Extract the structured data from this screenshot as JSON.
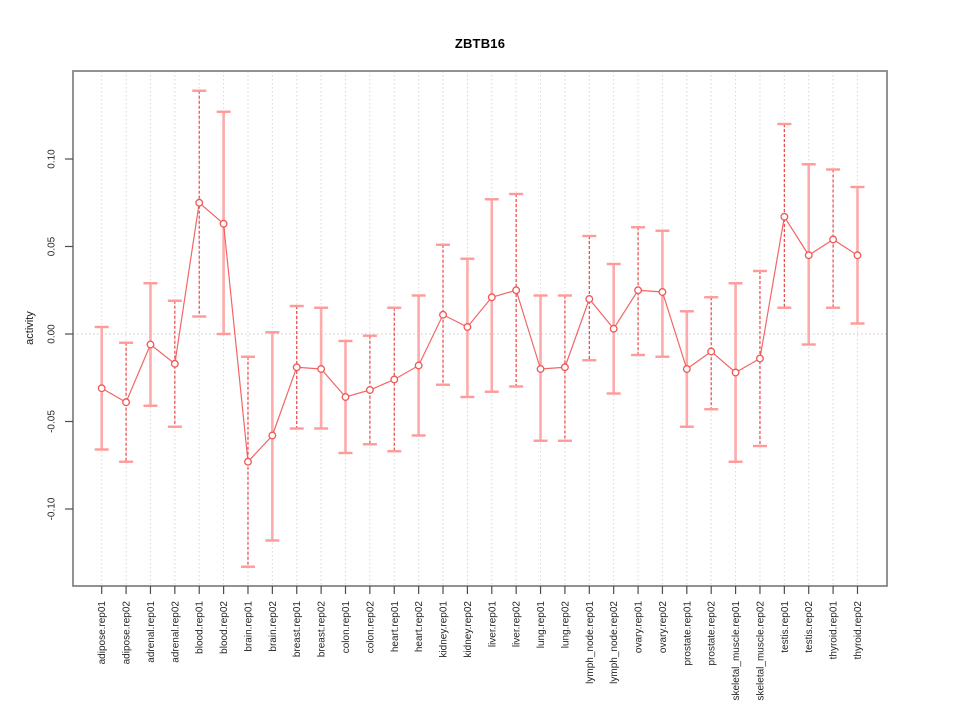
{
  "chart_data": {
    "type": "line",
    "title": "ZBTB16",
    "xlabel": "",
    "ylabel": "activity",
    "ylim": [
      -0.145,
      0.15
    ],
    "yticks": [
      0.1,
      0.05,
      0.0,
      -0.05,
      -0.1
    ],
    "ytick_labels": [
      "0.10",
      "0.05",
      "0.00",
      "-0.05",
      "-0.10"
    ],
    "legend": "none",
    "grid": "vertical dotted gridline at every category; dotted horizontal reference line at y=0",
    "point_marker": "open circle",
    "categories": [
      "adipose.rep01",
      "adipose.rep02",
      "adrenal.rep01",
      "adrenal.rep02",
      "blood.rep01",
      "blood.rep02",
      "brain.rep01",
      "brain.rep02",
      "breast.rep01",
      "breast.rep02",
      "colon.rep01",
      "colon.rep02",
      "heart.rep01",
      "heart.rep02",
      "kidney.rep01",
      "kidney.rep02",
      "liver.rep01",
      "liver.rep02",
      "lung.rep01",
      "lung.rep02",
      "lymph_node.rep01",
      "lymph_node.rep02",
      "ovary.rep01",
      "ovary.rep02",
      "prostate.rep01",
      "prostate.rep02",
      "skeletal_muscle.rep01",
      "skeletal_muscle.rep02",
      "testis.rep01",
      "testis.rep02",
      "thyroid.rep01",
      "thyroid.rep02"
    ],
    "series": [
      {
        "name": "activity",
        "values": [
          -0.031,
          -0.039,
          -0.006,
          -0.017,
          0.075,
          0.063,
          -0.073,
          -0.058,
          -0.019,
          -0.02,
          -0.036,
          -0.032,
          -0.026,
          -0.018,
          0.011,
          0.004,
          0.021,
          0.025,
          -0.02,
          -0.019,
          0.02,
          0.003,
          0.025,
          0.024,
          -0.02,
          -0.01,
          -0.022,
          -0.014,
          0.067,
          0.045,
          0.054,
          0.045
        ],
        "error_high": [
          0.004,
          -0.005,
          0.029,
          0.019,
          0.139,
          0.127,
          -0.013,
          0.001,
          0.016,
          0.015,
          -0.004,
          -0.001,
          0.015,
          0.022,
          0.051,
          0.043,
          0.077,
          0.08,
          0.022,
          0.022,
          0.056,
          0.04,
          0.061,
          0.059,
          0.013,
          0.021,
          0.029,
          0.036,
          0.12,
          0.097,
          0.094,
          0.084
        ],
        "error_low": [
          -0.066,
          -0.073,
          -0.041,
          -0.053,
          0.01,
          0.0,
          -0.133,
          -0.118,
          -0.054,
          -0.054,
          -0.068,
          -0.063,
          -0.067,
          -0.058,
          -0.029,
          -0.036,
          -0.033,
          -0.03,
          -0.061,
          -0.061,
          -0.015,
          -0.034,
          -0.012,
          -0.013,
          -0.053,
          -0.043,
          -0.073,
          -0.064,
          0.015,
          -0.006,
          0.015,
          0.006
        ],
        "error_bar_styles": [
          "solid",
          "dashed",
          "solid",
          "dashed",
          "dashed",
          "solid",
          "dashed",
          "solid",
          "dashed",
          "solid",
          "solid",
          "dashed",
          "dashed",
          "solid",
          "dashed",
          "solid",
          "solid",
          "dashed",
          "solid",
          "dashed",
          "dashed",
          "solid",
          "dashed",
          "solid",
          "solid",
          "dashed",
          "solid",
          "dashed",
          "dashed",
          "solid",
          "dashed",
          "solid"
        ]
      }
    ],
    "colors": {
      "series_line": "#f15555",
      "point_stroke": "#f15555",
      "error_bar_solid": "#ffaaaa",
      "error_bar_dashed": "#ee4444",
      "error_bar_cap": "#ff9a9a",
      "gridline": "#d9d9d9",
      "zero_line": "#c8c8c8",
      "plot_border": "#7f7f7f",
      "tick": "#4d4d4d",
      "tick_label": "#262626",
      "title": "#000000"
    }
  }
}
